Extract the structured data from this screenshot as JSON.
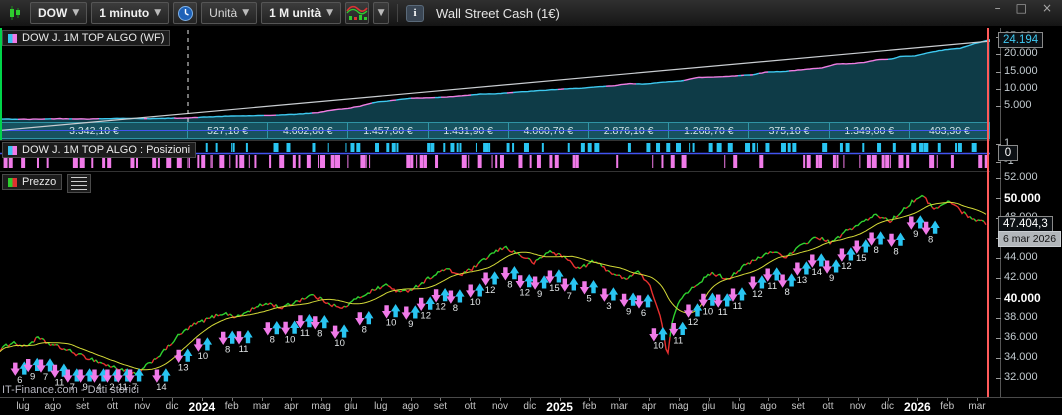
{
  "window": {
    "title": "Wall Street Cash (1€)",
    "controls": [
      "–",
      "□",
      "×"
    ]
  },
  "toolbar": {
    "instrument": "DOW",
    "timeframe": "1 minuto",
    "unit_label": "Unità",
    "quantity_label": "1 M unità",
    "icons": [
      "candlestick-icon",
      "clock-icon",
      "chart-style-icon",
      "dropdown-chevron",
      "info-icon"
    ]
  },
  "equity_panel": {
    "label": "DOW J.  1M  TOP ALGO (WF)",
    "current_value": "24.194",
    "axis_ticks": [
      [
        25000,
        "25.000"
      ],
      [
        20000,
        "20.000"
      ],
      [
        15000,
        "15.000"
      ],
      [
        10000,
        "10.000"
      ],
      [
        5000,
        "5.000"
      ]
    ],
    "wf_values": [
      "3.342,10 €",
      "527,10 €",
      "4.602,60 €",
      "1.457,60 €",
      "1.431,90 €",
      "4.060,70 €",
      "2.876,10 €",
      "1.268,70 €",
      "375,10 €",
      "1.349,00 €",
      "403,30 €"
    ],
    "dashed_line_pct": 18.99,
    "curve": [
      [
        0,
        1.3
      ],
      [
        3,
        1.2
      ],
      [
        6,
        1.4
      ],
      [
        9,
        1.3
      ],
      [
        12,
        1.5
      ],
      [
        15,
        1.4
      ],
      [
        18.9,
        1.6
      ],
      [
        21,
        1.9
      ],
      [
        24,
        2.2
      ],
      [
        27,
        2.3
      ],
      [
        30,
        2.7
      ],
      [
        32,
        3.1
      ],
      [
        33.5,
        3.9
      ],
      [
        35,
        4.3
      ],
      [
        36.5,
        5.1
      ],
      [
        38,
        6.2
      ],
      [
        39.5,
        6.6
      ],
      [
        41,
        7.2
      ],
      [
        42.5,
        7.4
      ],
      [
        44,
        7.5
      ],
      [
        45.5,
        7.7
      ],
      [
        47,
        8.1
      ],
      [
        48.5,
        8.5
      ],
      [
        50,
        8.6
      ],
      [
        52,
        9.0
      ],
      [
        54,
        9.4
      ],
      [
        56,
        9.8
      ],
      [
        58,
        10.1
      ],
      [
        60,
        10.5
      ],
      [
        62,
        10.9
      ],
      [
        63.5,
        11.5
      ],
      [
        65,
        11.4
      ],
      [
        67,
        11.9
      ],
      [
        69,
        12.4
      ],
      [
        70.5,
        13.3
      ],
      [
        72,
        13.4
      ],
      [
        74,
        13.7
      ],
      [
        76,
        14.1
      ],
      [
        77.5,
        14.9
      ],
      [
        79,
        15.0
      ],
      [
        81,
        15.5
      ],
      [
        83,
        16.1
      ],
      [
        84.5,
        17.2
      ],
      [
        86,
        17.3
      ],
      [
        87.5,
        17.7
      ],
      [
        88.5,
        18.4
      ],
      [
        90,
        18.6
      ],
      [
        91,
        19.4
      ],
      [
        92.5,
        19.5
      ],
      [
        93.5,
        20.3
      ],
      [
        95,
        21.1
      ],
      [
        96,
        21.5
      ],
      [
        97,
        21.7
      ],
      [
        98,
        22.7
      ],
      [
        99,
        23.5
      ],
      [
        100,
        24.2
      ]
    ],
    "trend_line": {
      "x1": 0,
      "v1": -2.0,
      "x2": 100,
      "v2": 23.8
    }
  },
  "positions_panel": {
    "label": "DOW J.  1M  TOP ALGO : Posizioni",
    "current": "0",
    "axis_ticks": [
      [
        1,
        "1"
      ],
      [
        -1,
        "-1"
      ]
    ]
  },
  "price_panel": {
    "label": "Prezzo",
    "current_price": "47.404,3",
    "current_date": "6 mar 2026",
    "watermark": "IT-Finance.com - Dati storici",
    "axis_ticks": [
      [
        52000,
        "52.000",
        0
      ],
      [
        50000,
        "50.000",
        1
      ],
      [
        48000,
        "48.000",
        0
      ],
      [
        46000,
        "46.000",
        0
      ],
      [
        44000,
        "44.000",
        0
      ],
      [
        42000,
        "42.000",
        0
      ],
      [
        40000,
        "40.000",
        1
      ],
      [
        38000,
        "38.000",
        0
      ],
      [
        36000,
        "36.000",
        0
      ],
      [
        34000,
        "34.000",
        0
      ],
      [
        32000,
        "32.000",
        0
      ]
    ],
    "series": [
      [
        0,
        34.8
      ],
      [
        1.2,
        35.6
      ],
      [
        2.5,
        35.1
      ],
      [
        3.8,
        36.0
      ],
      [
        5,
        35.4
      ],
      [
        6.5,
        34.9
      ],
      [
        8,
        34.3
      ],
      [
        9.5,
        33.8
      ],
      [
        11,
        33.2
      ],
      [
        12.5,
        32.8
      ],
      [
        13.8,
        32.3
      ],
      [
        15,
        33.4
      ],
      [
        16.5,
        34.6
      ],
      [
        18,
        36.2
      ],
      [
        19.5,
        37.3
      ],
      [
        21,
        37.9
      ],
      [
        22.5,
        38.5
      ],
      [
        24,
        38.1
      ],
      [
        25.5,
        38.9
      ],
      [
        27,
        39.5
      ],
      [
        28.5,
        39.0
      ],
      [
        30,
        39.7
      ],
      [
        31.5,
        40.3
      ],
      [
        33,
        39.6
      ],
      [
        34.5,
        38.9
      ],
      [
        36,
        39.9
      ],
      [
        37.5,
        40.7
      ],
      [
        39,
        41.3
      ],
      [
        40.5,
        40.5
      ],
      [
        42,
        41.1
      ],
      [
        43.5,
        42.1
      ],
      [
        45,
        42.9
      ],
      [
        46.5,
        42.3
      ],
      [
        48,
        43.1
      ],
      [
        49.5,
        44.3
      ],
      [
        51,
        45.1
      ],
      [
        52.5,
        44.3
      ],
      [
        54,
        43.5
      ],
      [
        55.5,
        44.7
      ],
      [
        57,
        44.1
      ],
      [
        58.5,
        42.9
      ],
      [
        60,
        43.7
      ],
      [
        61.5,
        42.7
      ],
      [
        63,
        41.9
      ],
      [
        64.5,
        42.7
      ],
      [
        65.8,
        40.9
      ],
      [
        66.8,
        37.8
      ],
      [
        67.4,
        34.0
      ],
      [
        68,
        38.2
      ],
      [
        69,
        40.3
      ],
      [
        70.5,
        41.5
      ],
      [
        72,
        42.5
      ],
      [
        73.5,
        41.9
      ],
      [
        75,
        43.1
      ],
      [
        76.5,
        43.9
      ],
      [
        78,
        44.7
      ],
      [
        79.5,
        44.1
      ],
      [
        81,
        45.3
      ],
      [
        82.5,
        46.1
      ],
      [
        84,
        45.5
      ],
      [
        85.5,
        46.7
      ],
      [
        87,
        47.5
      ],
      [
        88.5,
        48.3
      ],
      [
        90,
        47.7
      ],
      [
        91.5,
        49.1
      ],
      [
        93,
        50.3
      ],
      [
        94.5,
        48.9
      ],
      [
        96,
        49.7
      ],
      [
        97.3,
        48.5
      ],
      [
        98.6,
        47.8
      ],
      [
        100,
        47.4
      ]
    ],
    "markers": [
      [
        2,
        6
      ],
      [
        3.3,
        9
      ],
      [
        4.6,
        7
      ],
      [
        6,
        11
      ],
      [
        7.3,
        7
      ],
      [
        8.6,
        9
      ],
      [
        10,
        4
      ],
      [
        11.3,
        2
      ],
      [
        12.4,
        11
      ],
      [
        13.6,
        7
      ],
      [
        16.3,
        14
      ],
      [
        18.5,
        13
      ],
      [
        20.5,
        10
      ],
      [
        23,
        8
      ],
      [
        24.6,
        11
      ],
      [
        27.5,
        8
      ],
      [
        29.3,
        10
      ],
      [
        30.8,
        11
      ],
      [
        32.3,
        8
      ],
      [
        34.3,
        10
      ],
      [
        36.8,
        8
      ],
      [
        39.5,
        10
      ],
      [
        41.5,
        9
      ],
      [
        43,
        12
      ],
      [
        44.5,
        12
      ],
      [
        46,
        8
      ],
      [
        48,
        10
      ],
      [
        49.5,
        12
      ],
      [
        51.5,
        8
      ],
      [
        53,
        12
      ],
      [
        54.5,
        9
      ],
      [
        56,
        15
      ],
      [
        57.5,
        7
      ],
      [
        59.5,
        5
      ],
      [
        61.5,
        3
      ],
      [
        63.5,
        9
      ],
      [
        65,
        6
      ],
      [
        66.5,
        10
      ],
      [
        68.5,
        11
      ],
      [
        70,
        12
      ],
      [
        71.5,
        10
      ],
      [
        73,
        11
      ],
      [
        74.5,
        11
      ],
      [
        76.5,
        12
      ],
      [
        78,
        11
      ],
      [
        79.5,
        8
      ],
      [
        81,
        13
      ],
      [
        82.5,
        14
      ],
      [
        84,
        9
      ],
      [
        85.5,
        12
      ],
      [
        87,
        15
      ],
      [
        88.5,
        8
      ],
      [
        90.5,
        8
      ],
      [
        92.5,
        9
      ],
      [
        94,
        8
      ]
    ]
  },
  "time_axis": {
    "labels": [
      "lug",
      "ago",
      "set",
      "ott",
      "nov",
      "dic",
      "2024",
      "feb",
      "mar",
      "apr",
      "mag",
      "giu",
      "lug",
      "ago",
      "set",
      "ott",
      "nov",
      "dic",
      "2025",
      "feb",
      "mar",
      "apr",
      "mag",
      "giu",
      "lug",
      "ago",
      "set",
      "ott",
      "nov",
      "dic",
      "2026",
      "feb",
      "mar"
    ],
    "bold_labels": [
      "2024",
      "2025",
      "2026"
    ]
  },
  "colors": {
    "equity_line": "#3ec9f0",
    "equity_alt": "#ee7ee2",
    "equity_fill": "#0e3b47",
    "trend": "#c9cdd1",
    "long_bar": "#29c5f2",
    "short_bar": "#f07ae8",
    "up": "#2fd12f",
    "down": "#e83030",
    "ma": "#d3d937",
    "cursor": "#ff5a5a",
    "zero_line": "#4254f0"
  }
}
